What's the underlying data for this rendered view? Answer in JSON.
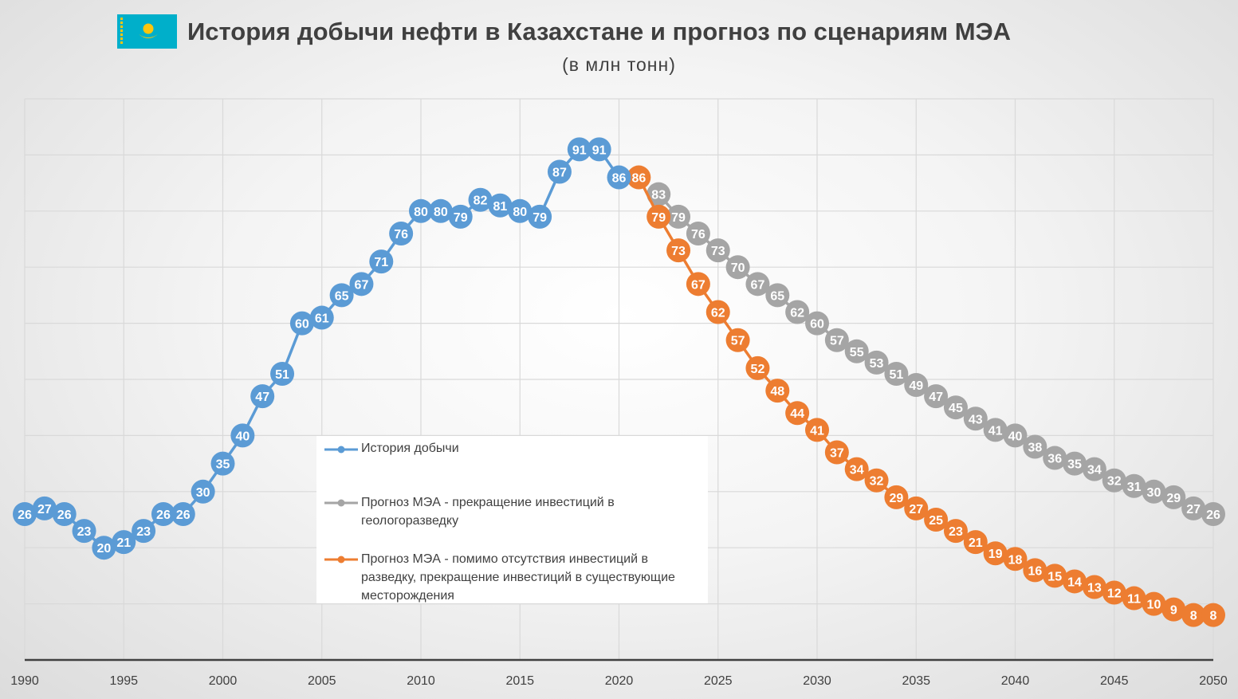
{
  "header": {
    "title": "История добычи нефти в Казахстане и прогноз по сценариям МЭА",
    "subtitle": "(в млн тонн)"
  },
  "colors": {
    "history": "#5b9bd5",
    "no_exploration": "#a5a5a5",
    "no_investment": "#ed7d31",
    "flag_blue": "#00afca",
    "flag_gold": "#fec50c",
    "grid": "#d9d9d9",
    "text": "#404040"
  },
  "chart_data": {
    "type": "line",
    "title": "История добычи нефти в Казахстане и прогноз по сценариям МЭА",
    "subtitle": "(в млн тонн)",
    "xlabel": "",
    "ylabel": "",
    "x_ticks": [
      "1990",
      "1995",
      "2000",
      "2005",
      "2010",
      "2015",
      "2020",
      "2025",
      "2030",
      "2035",
      "2040",
      "2045",
      "2050"
    ],
    "xlim": [
      1990,
      2050
    ],
    "ylim": [
      0,
      100
    ],
    "grid": true,
    "data_labels": true,
    "legend_position": "center-left inside plot",
    "series": [
      {
        "name": "История добычи",
        "color": "#5b9bd5",
        "x": [
          1990,
          1991,
          1992,
          1993,
          1994,
          1995,
          1996,
          1997,
          1998,
          1999,
          2000,
          2001,
          2002,
          2003,
          2004,
          2005,
          2006,
          2007,
          2008,
          2009,
          2010,
          2011,
          2012,
          2013,
          2014,
          2015,
          2016,
          2017,
          2018,
          2019,
          2020
        ],
        "values": [
          26,
          27,
          26,
          23,
          20,
          21,
          23,
          26,
          26,
          30,
          35,
          40,
          47,
          51,
          60,
          61,
          65,
          67,
          71,
          76,
          80,
          80,
          79,
          82,
          81,
          80,
          79,
          87,
          91,
          91,
          86
        ]
      },
      {
        "name": "Прогноз МЭА - прекращение инвестиций в геологоразведку",
        "color": "#a5a5a5",
        "x": [
          2022,
          2023,
          2024,
          2025,
          2026,
          2027,
          2028,
          2029,
          2030,
          2031,
          2032,
          2033,
          2034,
          2035,
          2036,
          2037,
          2038,
          2039,
          2040,
          2041,
          2042,
          2043,
          2044,
          2045,
          2046,
          2047,
          2048,
          2049,
          2050
        ],
        "values": [
          83,
          79,
          76,
          73,
          70,
          67,
          65,
          62,
          60,
          57,
          55,
          53,
          51,
          49,
          47,
          45,
          43,
          41,
          40,
          38,
          36,
          35,
          34,
          32,
          31,
          30,
          29,
          27,
          26
        ]
      },
      {
        "name": "Прогноз МЭА - помимо отсутствия инвестиций в разведку, прекращение инвестиций в существующие месторождения",
        "color": "#ed7d31",
        "x": [
          2021,
          2022,
          2023,
          2024,
          2025,
          2026,
          2027,
          2028,
          2029,
          2030,
          2031,
          2032,
          2033,
          2034,
          2035,
          2036,
          2037,
          2038,
          2039,
          2040,
          2041,
          2042,
          2043,
          2044,
          2045,
          2046,
          2047,
          2048,
          2049,
          2050
        ],
        "values": [
          86,
          79,
          73,
          67,
          62,
          57,
          52,
          48,
          44,
          41,
          37,
          34,
          32,
          29,
          27,
          25,
          23,
          21,
          19,
          18,
          16,
          15,
          14,
          13,
          12,
          11,
          10,
          9,
          8,
          8
        ]
      }
    ]
  }
}
